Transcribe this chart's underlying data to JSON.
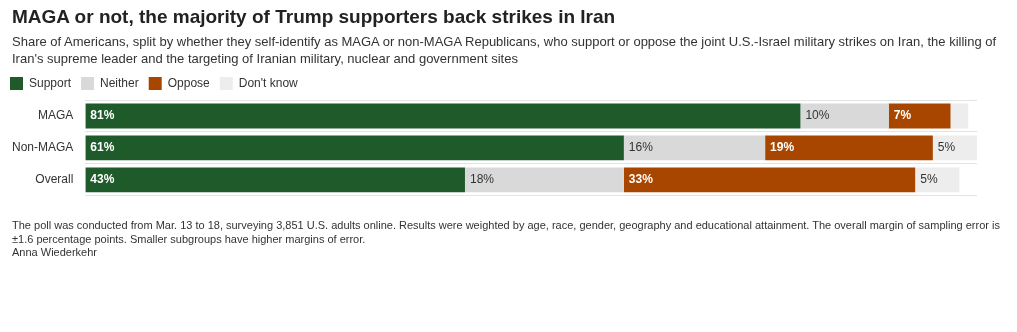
{
  "chart_data": {
    "type": "bar",
    "orientation": "horizontal",
    "stacked": true,
    "title": "MAGA or not, the majority of Trump supporters back strikes in Iran",
    "subtitle": "Share of Americans, split by whether they self-identify as MAGA or non-MAGA Republicans, who support or oppose the joint U.S.-Israel military strikes on Iran, the killing of Iran's supreme leader and the targeting of Iranian military, nuclear and government sites",
    "categories": [
      "MAGA",
      "Non-MAGA",
      "Overall"
    ],
    "series": [
      {
        "name": "Support",
        "color": "#1f5a2a",
        "values": [
          81,
          61,
          43
        ],
        "value_labels": [
          "81%",
          "61%",
          "43%"
        ]
      },
      {
        "name": "Neither",
        "color": "#d9d9d9",
        "values": [
          10,
          16,
          18
        ],
        "value_labels": [
          "10%",
          "16%",
          "18%"
        ]
      },
      {
        "name": "Oppose",
        "color": "#a84600",
        "values": [
          7,
          19,
          33
        ],
        "value_labels": [
          "7%",
          "19%",
          "33%"
        ]
      },
      {
        "name": "Don't know",
        "color": "#ededed",
        "values": [
          2,
          5,
          5
        ],
        "value_labels": [
          null,
          "5%",
          "5%"
        ]
      }
    ],
    "xlim": [
      0,
      101
    ],
    "tick_labels": "y",
    "grid": "y",
    "legend": "top left",
    "annotations": [
      "The poll was conducted from Mar. 13 to 18, surveying 3,851 U.S. adults online. Results were weighted by age, race, gender, geography and educational attainment. The overall margin of sampling error is ±1.6 percentage points. Smaller subgroups have higher margins of error.",
      "Anna Wiederkehr"
    ]
  }
}
